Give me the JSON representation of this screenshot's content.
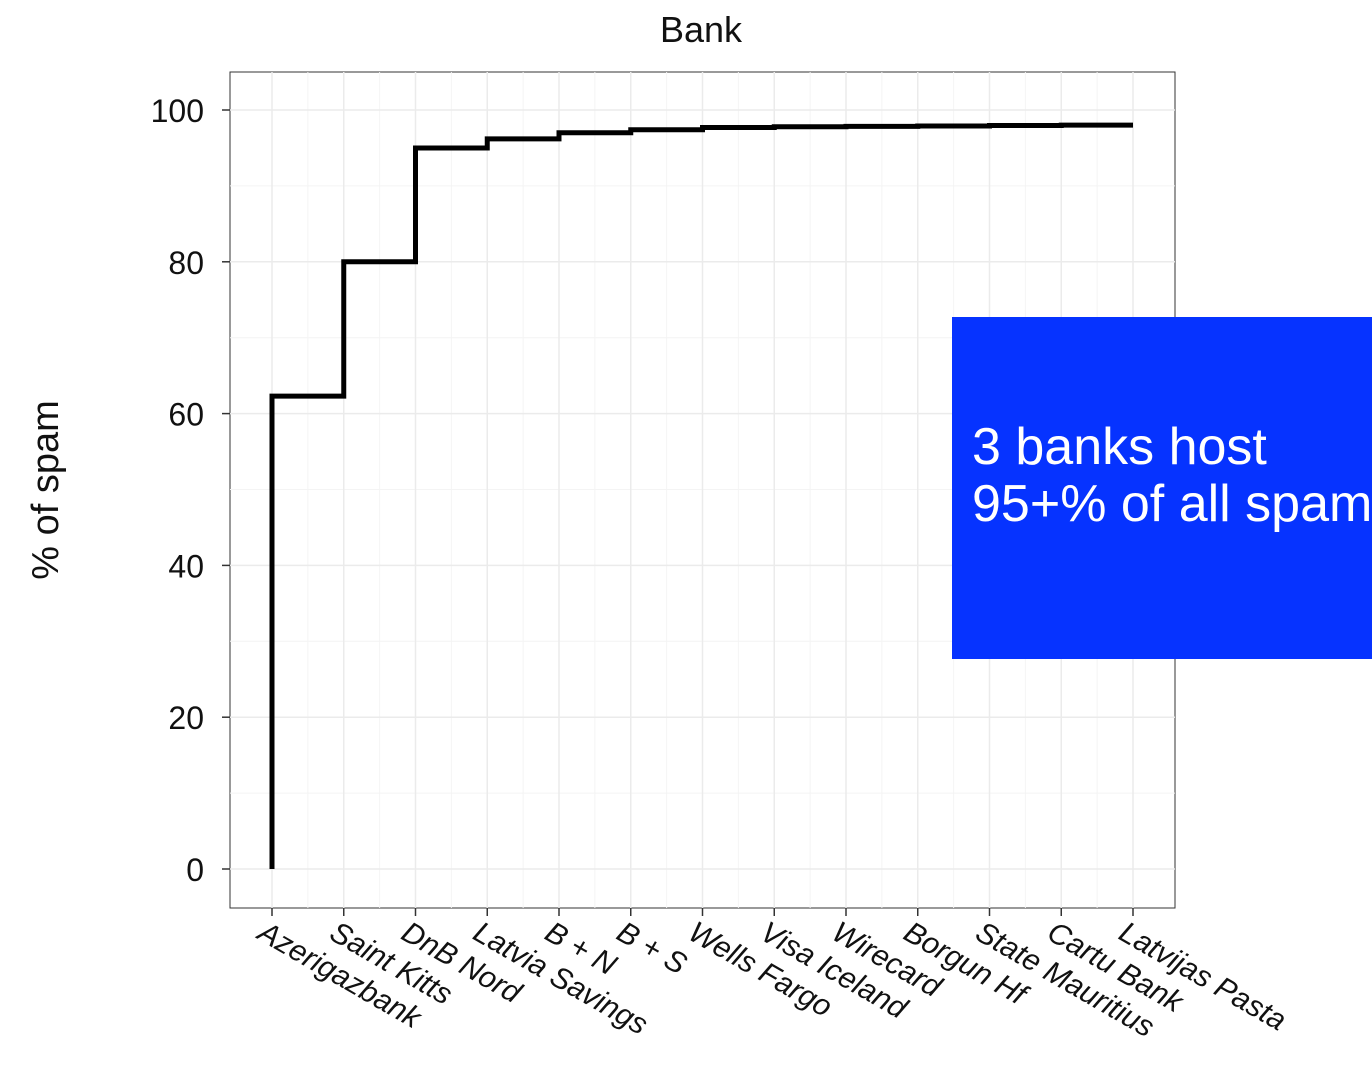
{
  "chart_data": {
    "type": "line",
    "step": true,
    "title": "Bank",
    "xlabel": "",
    "ylabel": "% of spam",
    "categories": [
      "Azerigazbank",
      "Saint Kitts",
      "DnB Nord",
      "Latvia Savings",
      "B + N",
      "B + S",
      "Wells Fargo",
      "Visa Iceland",
      "Wirecard",
      "Borgun Hf",
      "State Mauritius",
      "Cartu Bank",
      "Latvijas Pasta"
    ],
    "series": [
      {
        "values": [
          62.3,
          80.0,
          95.0,
          96.2,
          97.0,
          97.4,
          97.7,
          97.8,
          97.85,
          97.9,
          97.95,
          98.0,
          98.0
        ]
      }
    ],
    "start_value": 0,
    "ylim": [
      -5,
      105
    ],
    "yticks": [
      0,
      20,
      40,
      60,
      80,
      100
    ],
    "grid": true,
    "line_color": "#000000",
    "panel_color": "#ffffff",
    "grid_color": "#ebebeb"
  },
  "annotation": {
    "line1": "3 banks host",
    "line2": "95+% of all spam",
    "background": "#0633ff"
  }
}
